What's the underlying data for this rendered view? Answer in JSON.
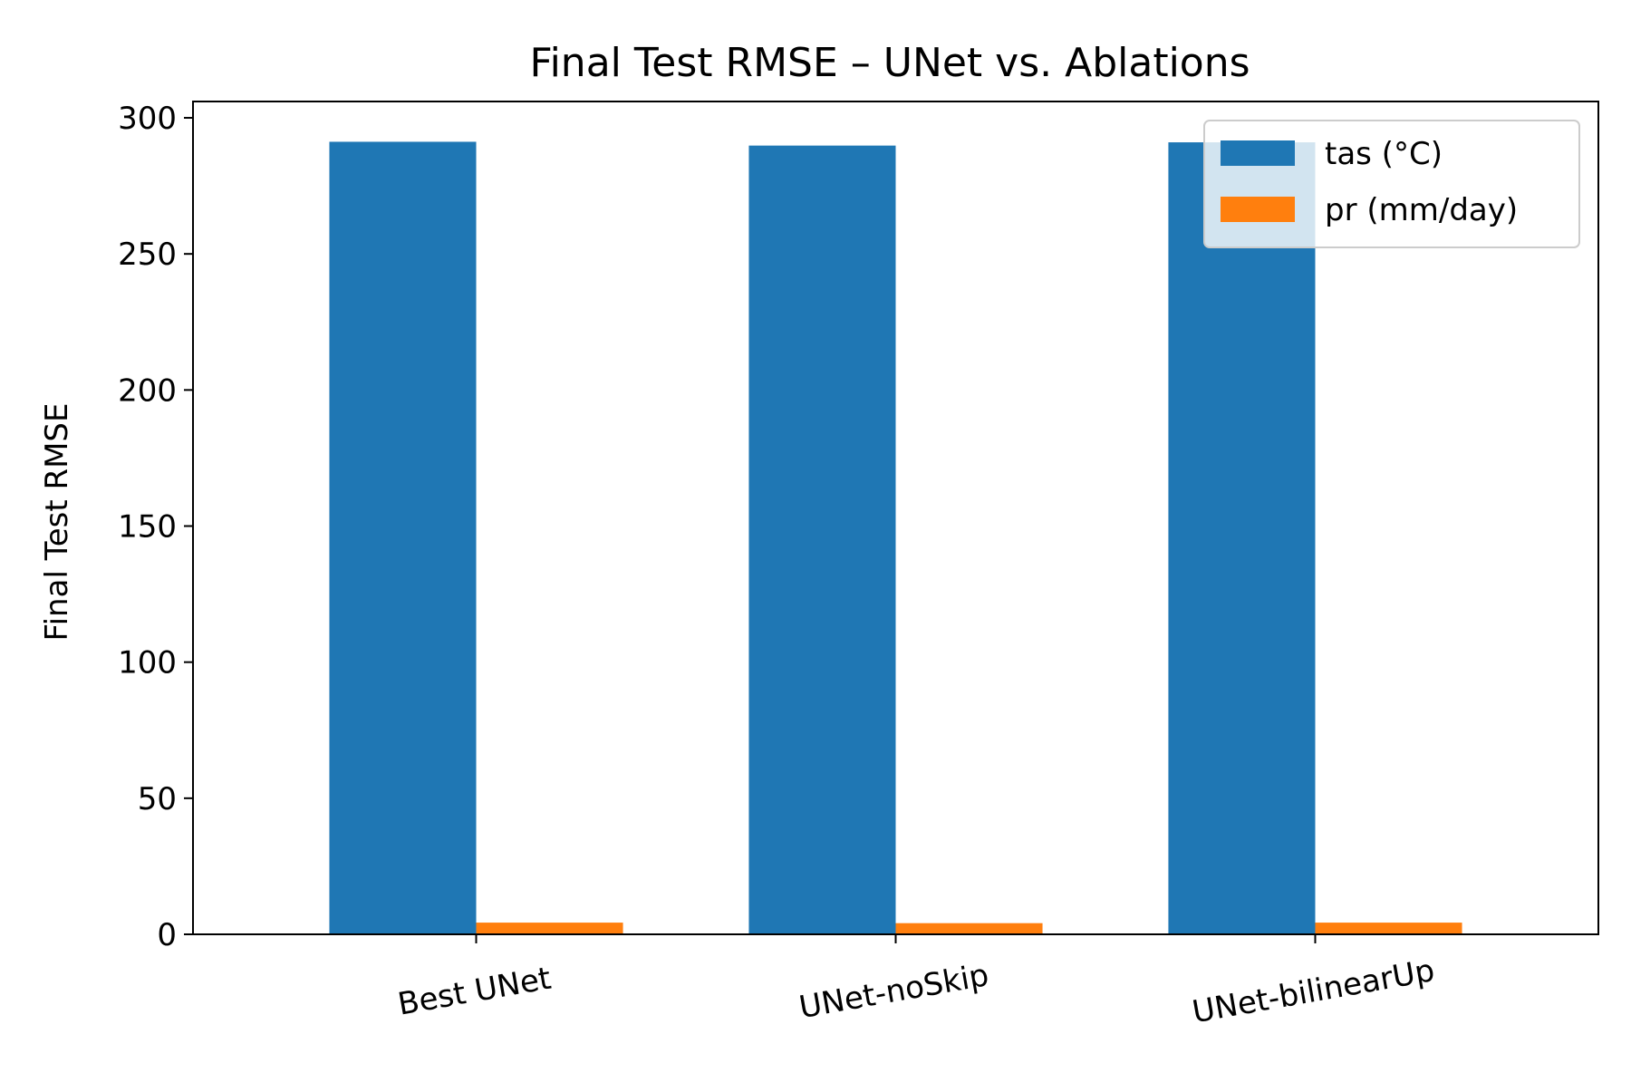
{
  "chart_data": {
    "type": "bar",
    "title": "Final Test RMSE – UNet vs. Ablations",
    "xlabel": "",
    "ylabel": "Final Test RMSE",
    "categories": [
      "Best UNet",
      "UNet-noSkip",
      "UNet-bilinearUp"
    ],
    "series": [
      {
        "name": "tas (°C)",
        "values": [
          291.2,
          289.8,
          291.0
        ],
        "color": "#1f77b4"
      },
      {
        "name": "pr (mm/day)",
        "values": [
          4.3,
          4.1,
          4.3
        ],
        "color": "#ff7f0e"
      }
    ],
    "ylim": [
      0,
      306
    ],
    "yticks": [
      0,
      50,
      100,
      150,
      200,
      250,
      300
    ],
    "grid": false,
    "legend_position": "top-right"
  }
}
